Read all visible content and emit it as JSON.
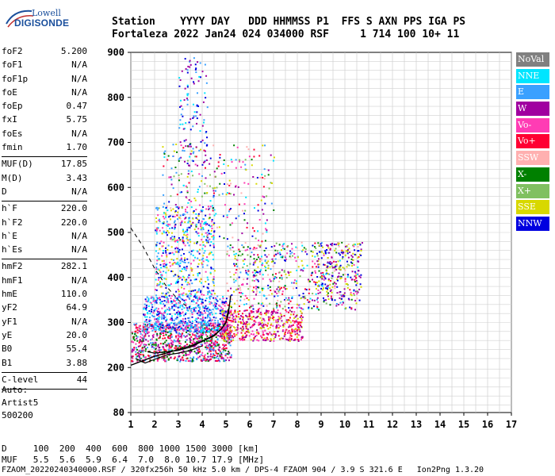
{
  "logo": {
    "line1": "Lowell",
    "line2": "DIGISONDE"
  },
  "header": {
    "line1": "Station    YYYY DAY   DDD HHMMSS P1  FFS S AXN PPS IGA PS",
    "line2": "Fortaleza 2022 Jan24 024 034000 RSF     1 714 100 10+ 11"
  },
  "params": {
    "group1": [
      {
        "k": "foF2",
        "v": "5.200"
      },
      {
        "k": "foF1",
        "v": "N/A"
      },
      {
        "k": "foF1p",
        "v": "N/A"
      },
      {
        "k": "foE",
        "v": "N/A"
      },
      {
        "k": "foEp",
        "v": "0.47"
      },
      {
        "k": "fxI",
        "v": "5.75"
      },
      {
        "k": "foEs",
        "v": "N/A"
      },
      {
        "k": "fmin",
        "v": "1.70"
      }
    ],
    "group2": [
      {
        "k": "MUF(D)",
        "v": "17.85"
      },
      {
        "k": "M(D)",
        "v": "3.43"
      },
      {
        "k": "D",
        "v": "N/A"
      }
    ],
    "group3": [
      {
        "k": "h`F",
        "v": "220.0"
      },
      {
        "k": "h`F2",
        "v": "220.0"
      },
      {
        "k": "h`E",
        "v": "N/A"
      },
      {
        "k": "h`Es",
        "v": "N/A"
      }
    ],
    "group4": [
      {
        "k": "hmF2",
        "v": "282.1"
      },
      {
        "k": "hmF1",
        "v": "N/A"
      },
      {
        "k": "hmE",
        "v": "110.0"
      },
      {
        "k": "yF2",
        "v": "64.9"
      },
      {
        "k": "yF1",
        "v": "N/A"
      },
      {
        "k": "yE",
        "v": "20.0"
      },
      {
        "k": "B0",
        "v": "55.4"
      },
      {
        "k": "B1",
        "v": "3.88"
      }
    ],
    "group5": [
      {
        "k": "C-level",
        "v": "44"
      }
    ]
  },
  "auto": {
    "l1": "Auto:",
    "l2": "Artist5",
    "l3": "500200"
  },
  "legend": [
    {
      "label": "NoVal",
      "color": "#808080"
    },
    {
      "label": "NNE",
      "color": "#00e5ff"
    },
    {
      "label": "E",
      "color": "#3aa0ff"
    },
    {
      "label": "W",
      "color": "#a000a0"
    },
    {
      "label": "Vo-",
      "color": "#ff3cb4"
    },
    {
      "label": "Vo+",
      "color": "#ff0033"
    },
    {
      "label": "SSW",
      "color": "#ffb0b0"
    },
    {
      "label": "X-",
      "color": "#008000"
    },
    {
      "label": "X+",
      "color": "#80c060"
    },
    {
      "label": "SSE",
      "color": "#d8d800"
    },
    {
      "label": "NNW",
      "color": "#0000e0"
    }
  ],
  "chart_data": {
    "type": "scatter",
    "title": "",
    "xlabel": "",
    "ylabel": "",
    "xlim": [
      1,
      17
    ],
    "ylim": [
      80,
      900
    ],
    "x_ticks": [
      "1",
      "2",
      "3",
      "4",
      "5",
      "6",
      "7",
      "8",
      "9",
      "10",
      "11",
      "12",
      "13",
      "14",
      "15",
      "16",
      "17"
    ],
    "y_ticks": [
      {
        "v": 80,
        "label": "80"
      },
      {
        "v": 200,
        "label": "200"
      },
      {
        "v": 300,
        "label": "300"
      },
      {
        "v": 400,
        "label": "400"
      },
      {
        "v": 500,
        "label": "500"
      },
      {
        "v": 600,
        "label": "600"
      },
      {
        "v": 700,
        "label": "700"
      },
      {
        "v": 800,
        "label": "800"
      },
      {
        "v": 900,
        "label": "900"
      }
    ],
    "grid": true,
    "trace_description": "ionogram echo traces (F2 layer O and X traces)",
    "profile_curve": [
      [
        1.0,
        205
      ],
      [
        1.5,
        215
      ],
      [
        2.0,
        225
      ],
      [
        2.5,
        232
      ],
      [
        3.0,
        240
      ],
      [
        3.5,
        248
      ],
      [
        4.0,
        258
      ],
      [
        4.5,
        272
      ],
      [
        4.8,
        285
      ],
      [
        5.0,
        300
      ],
      [
        5.1,
        320
      ],
      [
        5.2,
        360
      ]
    ],
    "o_trace": [
      [
        1.7,
        235
      ],
      [
        2.0,
        232
      ],
      [
        2.5,
        235
      ],
      [
        3.0,
        238
      ],
      [
        3.5,
        245
      ],
      [
        4.0,
        258
      ],
      [
        4.5,
        270
      ],
      [
        4.8,
        285
      ],
      [
        5.0,
        300
      ],
      [
        5.1,
        330
      ]
    ],
    "x_trace": [
      [
        1.2,
        220
      ],
      [
        1.6,
        210
      ],
      [
        2.0,
        218
      ],
      [
        2.5,
        228
      ],
      [
        3.0,
        232
      ],
      [
        3.5,
        238
      ],
      [
        4.0,
        248
      ]
    ],
    "dashed_curve": [
      [
        1.0,
        510
      ],
      [
        1.5,
        470
      ],
      [
        2.0,
        420
      ],
      [
        2.5,
        380
      ],
      [
        3.0,
        350
      ],
      [
        3.5,
        330
      ]
    ]
  },
  "footer": {
    "l1": "D     100  200  400  600  800 1000 1500 3000 [km]",
    "l2": "MUF   5.5  5.6  5.9  6.4  7.0  8.0 10.7 17.9 [MHz]",
    "l3": "FZAOM_20220240340000.RSF / 320fx256h 50 kHz 5.0 km / DPS-4 FZAOM 904 / 3.9 S 321.6 E   Ion2Png 1.3.20"
  }
}
